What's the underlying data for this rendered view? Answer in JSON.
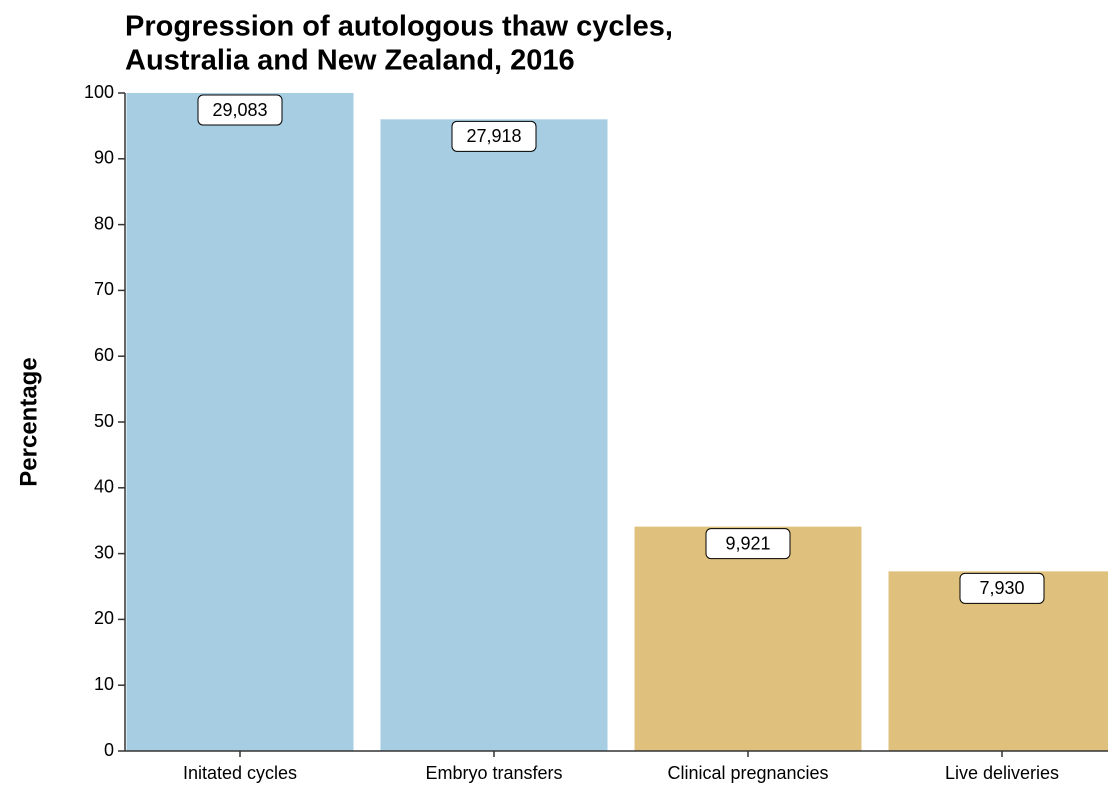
{
  "chart_data": {
    "type": "bar",
    "title": [
      "Progression of autologous thaw cycles,",
      "Australia and New Zealand, 2016"
    ],
    "ylabel": "Percentage",
    "categories": [
      "Initated cycles",
      "Embryo transfers",
      "Clinical pregnancies",
      "Live deliveries"
    ],
    "values": [
      100,
      96,
      34.1,
      27.3
    ],
    "bar_labels": [
      "29,083",
      "27,918",
      "9,921",
      "7,930"
    ],
    "colors": [
      "#a6cde2",
      "#a6cde2",
      "#dfc17d",
      "#dfc17d"
    ],
    "ylim": [
      0,
      100
    ],
    "yticks": [
      0,
      10,
      20,
      30,
      40,
      50,
      60,
      70,
      80,
      90,
      100
    ],
    "grid": false
  }
}
